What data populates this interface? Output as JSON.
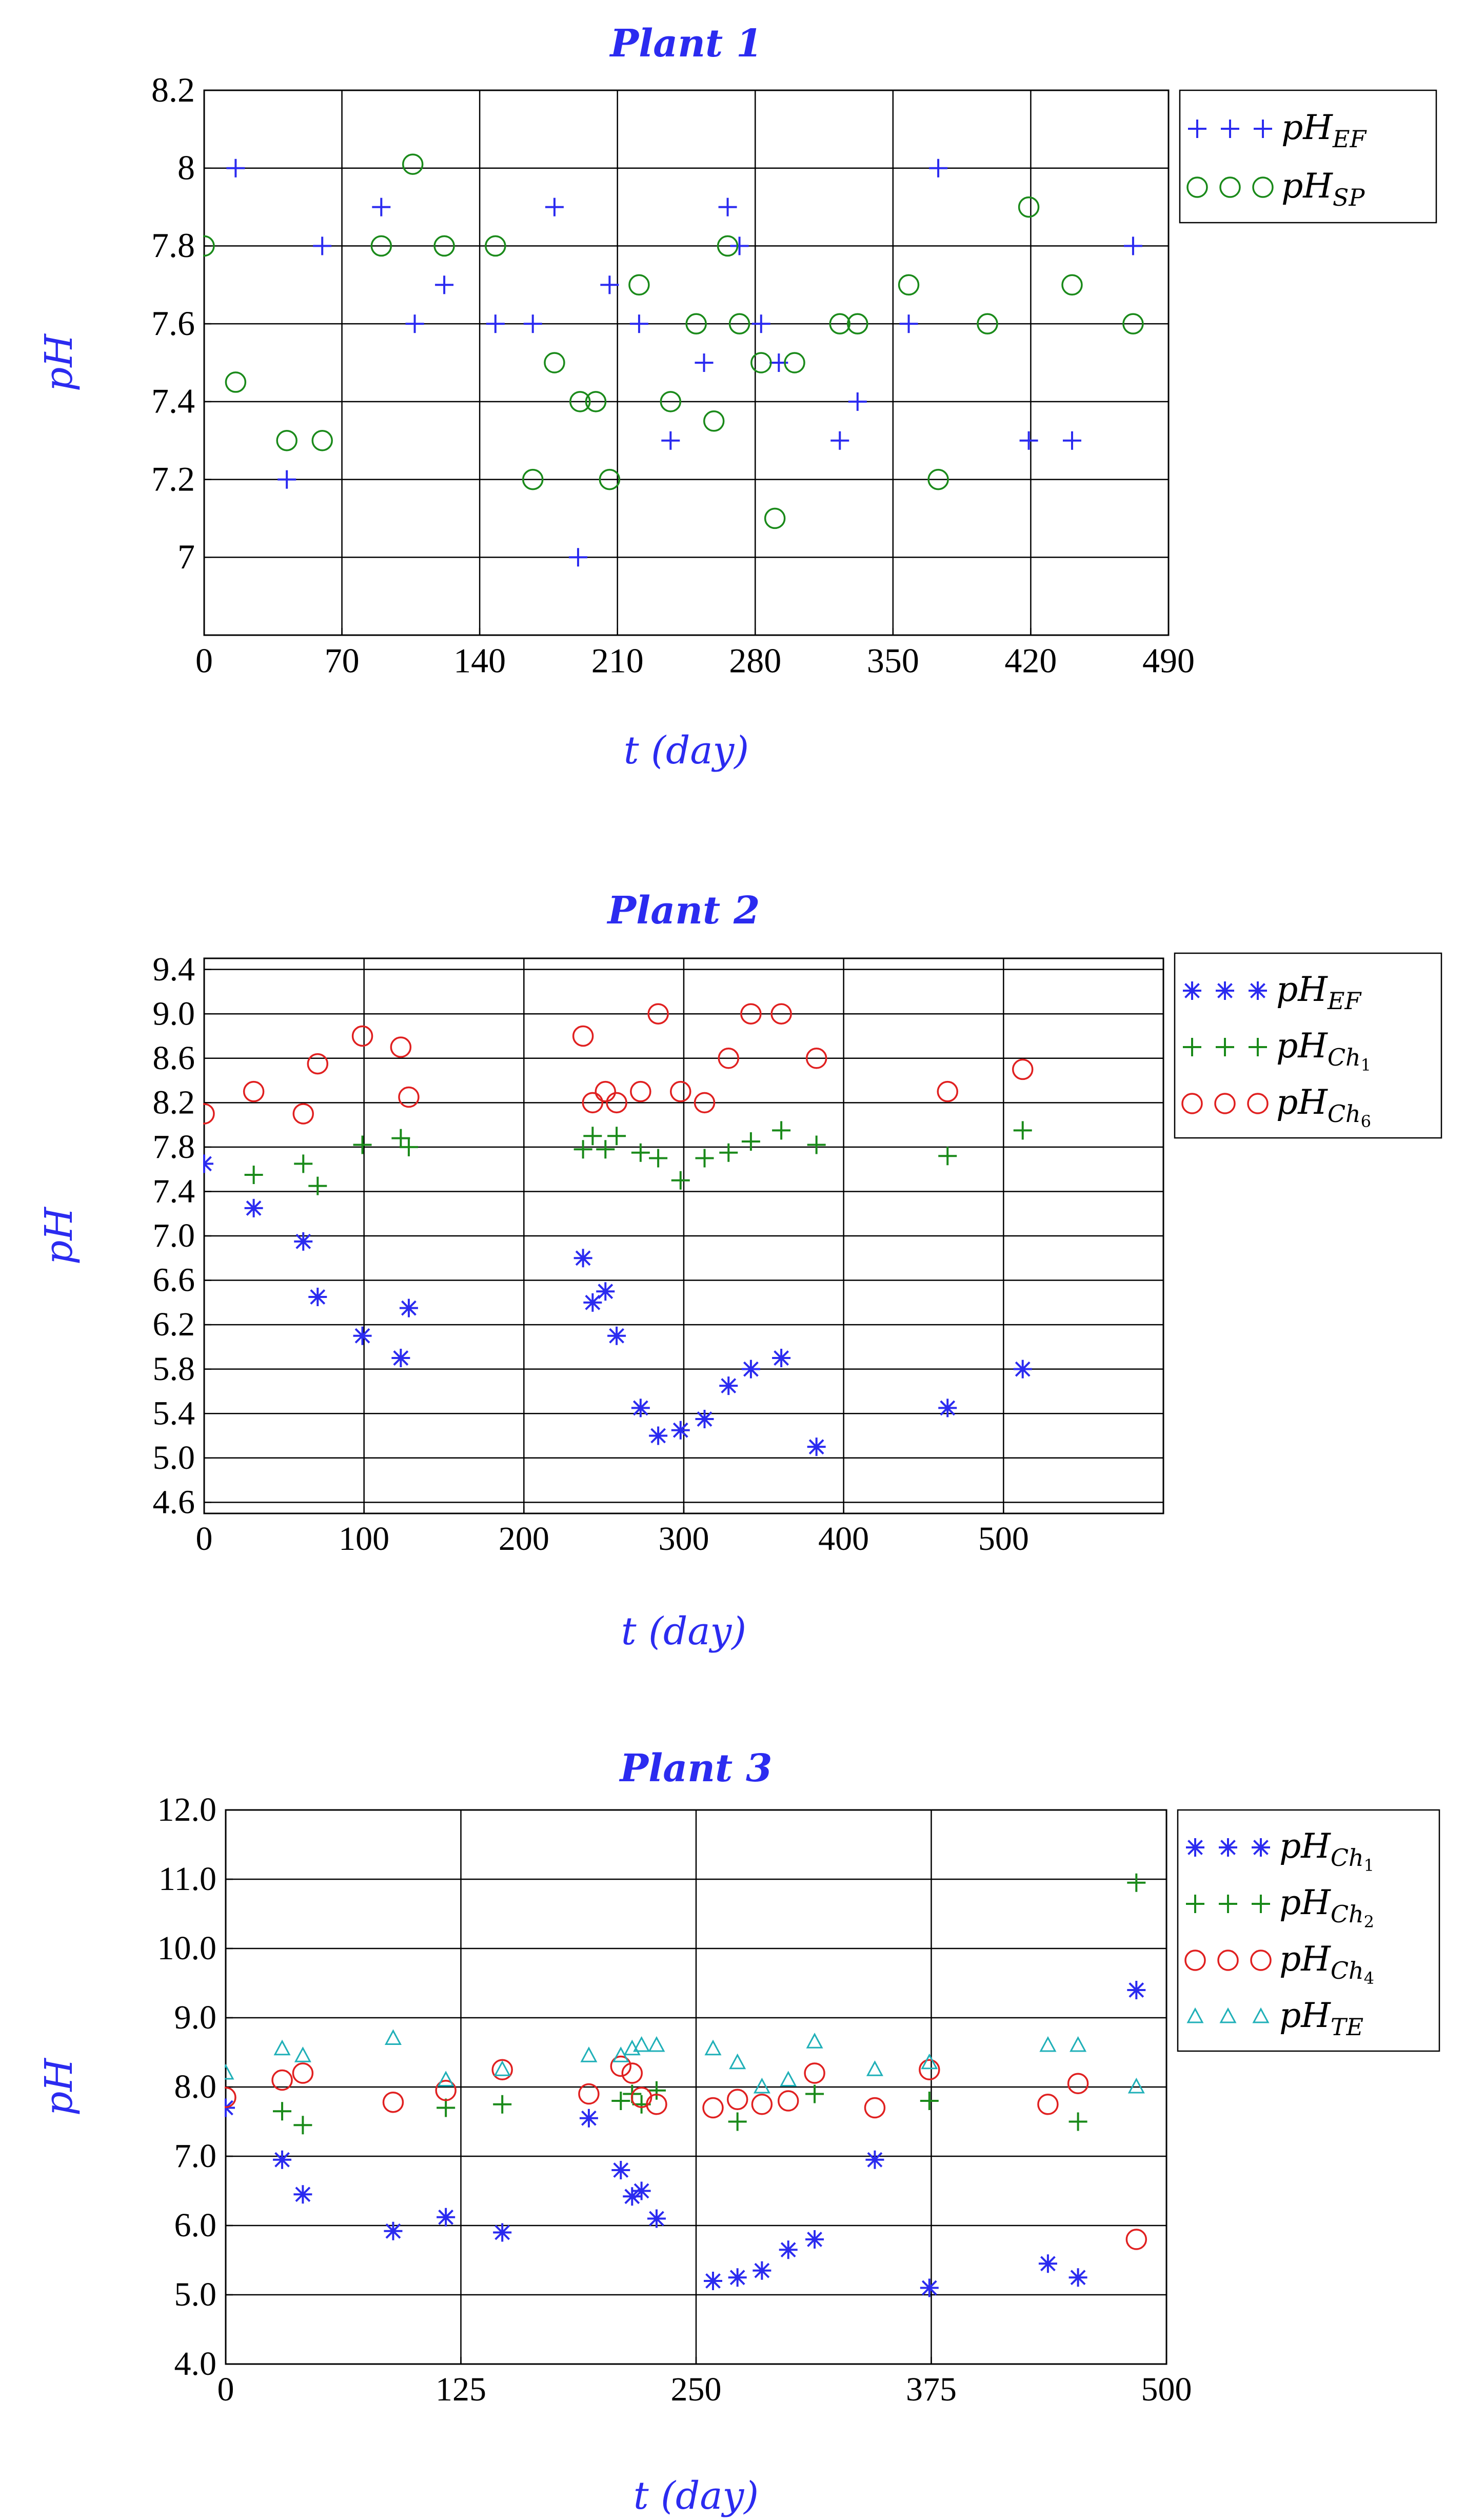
{
  "chart_data": [
    {
      "type": "scatter",
      "title": "Plant 1",
      "xlabel": "t (day)",
      "ylabel": "pH",
      "xlim": [
        0,
        490
      ],
      "ylim": [
        6.8,
        8.2
      ],
      "xticks": [
        "0",
        "70",
        "140",
        "210",
        "280",
        "350",
        "420",
        "490"
      ],
      "yticks": [
        "7",
        "7.2",
        "7.4",
        "7.6",
        "7.8",
        "8",
        "8.2"
      ],
      "grid": true,
      "legend_position": "right",
      "series": [
        {
          "name": "pH_EF",
          "label_main": "pH",
          "label_sub": "EF",
          "marker": "plus",
          "color": "#2b2bf0",
          "x": [
            16,
            42,
            60,
            90,
            107,
            122,
            148,
            167,
            178,
            190,
            206,
            221,
            237,
            254,
            266,
            272,
            283,
            292,
            323,
            332,
            358,
            373,
            419,
            441,
            472
          ],
          "y": [
            8.0,
            7.2,
            7.8,
            7.9,
            7.6,
            7.7,
            7.6,
            7.6,
            7.9,
            7.0,
            7.7,
            7.6,
            7.3,
            7.5,
            7.9,
            7.8,
            7.6,
            7.5,
            7.3,
            7.4,
            7.6,
            8.0,
            7.3,
            7.3,
            7.8
          ]
        },
        {
          "name": "pH_SP",
          "label_main": "pH",
          "label_sub": "SP",
          "marker": "circle",
          "color": "#1a8a1a",
          "x": [
            0,
            16,
            42,
            60,
            90,
            106,
            122,
            148,
            167,
            178,
            191,
            199,
            206,
            221,
            237,
            250,
            259,
            266,
            272,
            283,
            290,
            300,
            323,
            332,
            358,
            373,
            398,
            419,
            441,
            472
          ],
          "y": [
            7.8,
            7.45,
            7.3,
            7.3,
            7.8,
            8.01,
            7.8,
            7.8,
            7.2,
            7.5,
            7.4,
            7.4,
            7.2,
            7.7,
            7.4,
            7.6,
            7.35,
            7.8,
            7.6,
            7.5,
            7.1,
            7.5,
            7.6,
            7.6,
            7.7,
            7.2,
            7.6,
            7.9,
            7.7,
            7.6
          ]
        }
      ]
    },
    {
      "type": "scatter",
      "title": "Plant 2",
      "xlabel": "t (day)",
      "ylabel": "pH",
      "xlim": [
        0,
        600
      ],
      "ylim": [
        4.5,
        9.5
      ],
      "xticks": [
        "0",
        "100",
        "200",
        "300",
        "400",
        "500"
      ],
      "yticks": [
        "4.6",
        "5.0",
        "5.4",
        "5.8",
        "6.2",
        "6.6",
        "7.0",
        "7.4",
        "7.8",
        "8.2",
        "8.6",
        "9.0",
        "9.4"
      ],
      "grid": true,
      "legend_position": "right",
      "series": [
        {
          "name": "pH_EF",
          "label_main": "pH",
          "label_sub": "EF",
          "marker": "star",
          "color": "#2b2bf0",
          "x": [
            0,
            31,
            62,
            71,
            99,
            123,
            128,
            237,
            243,
            251,
            258,
            273,
            284,
            298,
            313,
            328,
            342,
            361,
            383,
            465,
            512
          ],
          "y": [
            7.65,
            7.25,
            6.95,
            6.45,
            6.1,
            5.9,
            6.35,
            6.8,
            6.4,
            6.5,
            6.1,
            5.45,
            5.2,
            5.25,
            5.35,
            5.65,
            5.8,
            5.9,
            5.1,
            5.45,
            5.8
          ]
        },
        {
          "name": "pH_Ch1",
          "label_main": "pH",
          "label_sub": "Ch",
          "label_subsub": "1",
          "marker": "plus",
          "color": "#1a8a1a",
          "x": [
            31,
            62,
            71,
            99,
            123,
            128,
            237,
            243,
            251,
            258,
            273,
            284,
            298,
            313,
            328,
            342,
            361,
            383,
            465,
            512
          ],
          "y": [
            7.55,
            7.65,
            7.45,
            7.82,
            7.88,
            7.8,
            7.78,
            7.9,
            7.78,
            7.9,
            7.75,
            7.7,
            7.5,
            7.7,
            7.75,
            7.85,
            7.95,
            7.82,
            7.72,
            7.95
          ]
        },
        {
          "name": "pH_Ch6",
          "label_main": "pH",
          "label_sub": "Ch",
          "label_subsub": "6",
          "marker": "circle",
          "color": "#e02020",
          "x": [
            0,
            31,
            62,
            71,
            99,
            123,
            128,
            237,
            243,
            251,
            258,
            273,
            284,
            298,
            313,
            328,
            342,
            361,
            383,
            465,
            512
          ],
          "y": [
            8.1,
            8.3,
            8.1,
            8.55,
            8.8,
            8.7,
            8.25,
            8.8,
            8.2,
            8.3,
            8.2,
            8.3,
            9.0,
            8.3,
            8.2,
            8.6,
            9.0,
            9.0,
            8.6,
            8.3,
            8.5
          ]
        }
      ]
    },
    {
      "type": "scatter",
      "title": "Plant 3",
      "xlabel": "t (day)",
      "ylabel": "pH",
      "xlim": [
        0,
        500
      ],
      "ylim": [
        4.0,
        12.0
      ],
      "xticks": [
        "0",
        "125",
        "250",
        "375",
        "500"
      ],
      "yticks": [
        "4.0",
        "5.0",
        "6.0",
        "7.0",
        "8.0",
        "9.0",
        "10.0",
        "11.0",
        "12.0"
      ],
      "grid": true,
      "legend_position": "right",
      "series": [
        {
          "name": "pH_Ch1",
          "label_main": "pH",
          "label_sub": "Ch",
          "label_subsub": "1",
          "marker": "star",
          "color": "#2b2bf0",
          "x": [
            0,
            30,
            41,
            89,
            117,
            147,
            193,
            210,
            216,
            221,
            229,
            259,
            272,
            285,
            299,
            313,
            345,
            374,
            437,
            453,
            484
          ],
          "y": [
            7.7,
            6.95,
            6.45,
            5.92,
            6.12,
            5.9,
            7.55,
            6.8,
            6.42,
            6.5,
            6.1,
            5.2,
            5.25,
            5.35,
            5.65,
            5.8,
            6.95,
            5.1,
            5.45,
            5.25,
            9.4
          ]
        },
        {
          "name": "pH_Ch2",
          "label_main": "pH",
          "label_sub": "Ch",
          "label_subsub": "2",
          "marker": "plus",
          "color": "#1a8a1a",
          "x": [
            30,
            41,
            117,
            147,
            210,
            216,
            221,
            229,
            272,
            313,
            374,
            453,
            484
          ],
          "y": [
            7.65,
            7.45,
            7.7,
            7.75,
            7.8,
            7.9,
            7.75,
            7.95,
            7.5,
            7.9,
            7.8,
            7.5,
            10.95
          ]
        },
        {
          "name": "pH_Ch4",
          "label_main": "pH",
          "label_sub": "Ch",
          "label_subsub": "4",
          "marker": "circle",
          "color": "#e02020",
          "x": [
            0,
            30,
            41,
            89,
            117,
            147,
            193,
            210,
            216,
            221,
            229,
            259,
            272,
            285,
            299,
            313,
            345,
            374,
            437,
            453,
            484
          ],
          "y": [
            7.85,
            8.1,
            8.2,
            7.78,
            7.95,
            8.25,
            7.9,
            8.3,
            8.2,
            7.85,
            7.75,
            7.7,
            7.82,
            7.75,
            7.8,
            8.2,
            7.7,
            8.25,
            7.75,
            8.05,
            5.8
          ]
        },
        {
          "name": "pH_TE",
          "label_main": "pH",
          "label_sub": "TE",
          "marker": "triangle",
          "color": "#20b0b8",
          "x": [
            0,
            30,
            41,
            89,
            117,
            147,
            193,
            210,
            216,
            221,
            229,
            259,
            272,
            285,
            299,
            313,
            345,
            374,
            437,
            453,
            484
          ],
          "y": [
            8.2,
            8.55,
            8.45,
            8.7,
            8.1,
            8.25,
            8.45,
            8.45,
            8.55,
            8.6,
            8.6,
            8.55,
            8.35,
            8.0,
            8.1,
            8.65,
            8.25,
            8.35,
            8.6,
            8.6,
            8.0
          ]
        }
      ]
    }
  ]
}
